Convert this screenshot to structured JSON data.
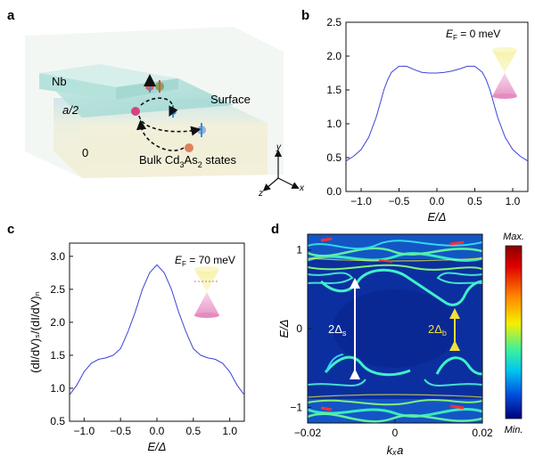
{
  "panels": {
    "a": "a",
    "b": "b",
    "c": "c",
    "d": "d"
  },
  "schematic": {
    "nb": "Nb",
    "surface": "Surface",
    "bulk_main": "Bulk Cd",
    "bulk_sub1": "3",
    "bulk_mid": "As",
    "bulk_sub2": "2",
    "bulk_end": " states",
    "a_half": "a/2",
    "zero": "0",
    "axis_x": "x",
    "axis_y": "y",
    "axis_z": "z",
    "colors": {
      "nb": "#b9e3dd",
      "surface": "#a9ddd8",
      "bulk": "#f1efd9",
      "spin_up": "#3a8fd8",
      "spin_red": "#e04a5a"
    }
  },
  "chart_data": [
    {
      "panel": "b",
      "type": "line",
      "annotation_main": "E",
      "annotation_sub": "F",
      "annotation_val": " = 0 meV",
      "xlabel": "E/Δ",
      "ylabel": "",
      "xlim": [
        -1.2,
        1.2
      ],
      "ylim": [
        0.0,
        2.5
      ],
      "xticks": [
        "−1.0",
        "−0.5",
        "0.0",
        "0.5",
        "1.0"
      ],
      "xtick_values": [
        -1.0,
        -0.5,
        0.0,
        0.5,
        1.0
      ],
      "yticks": [
        "0.0",
        "0.5",
        "1.0",
        "1.5",
        "2.0",
        "2.5"
      ],
      "ytick_values": [
        0.0,
        0.5,
        1.0,
        1.5,
        2.0,
        2.5
      ],
      "color": "#3b44d6",
      "x": [
        -1.2,
        -1.1,
        -1.0,
        -0.9,
        -0.8,
        -0.75,
        -0.7,
        -0.65,
        -0.6,
        -0.5,
        -0.4,
        -0.3,
        -0.2,
        -0.1,
        0.0,
        0.1,
        0.2,
        0.3,
        0.4,
        0.5,
        0.6,
        0.65,
        0.7,
        0.75,
        0.8,
        0.9,
        1.0,
        1.1,
        1.2
      ],
      "y": [
        0.45,
        0.52,
        0.62,
        0.8,
        1.1,
        1.3,
        1.5,
        1.65,
        1.76,
        1.85,
        1.85,
        1.8,
        1.76,
        1.75,
        1.75,
        1.76,
        1.78,
        1.81,
        1.85,
        1.85,
        1.76,
        1.65,
        1.5,
        1.3,
        1.1,
        0.8,
        0.62,
        0.52,
        0.45
      ]
    },
    {
      "panel": "c",
      "type": "line",
      "annotation_main": "E",
      "annotation_sub": "F",
      "annotation_val": " = 70 meV",
      "xlabel": "E/Δ",
      "ylabel": "(dI/dV)ₛ/(dI/dV)ₙ",
      "xlim": [
        -1.2,
        1.2
      ],
      "ylim": [
        0.5,
        3.2
      ],
      "xticks": [
        "−1.0",
        "−0.5",
        "0.0",
        "0.5",
        "1.0"
      ],
      "xtick_values": [
        -1.0,
        -0.5,
        0.0,
        0.5,
        1.0
      ],
      "yticks": [
        "0.5",
        "1.0",
        "1.5",
        "2.0",
        "2.5",
        "3.0"
      ],
      "ytick_values": [
        0.5,
        1.0,
        1.5,
        2.0,
        2.5,
        3.0
      ],
      "color": "#3b44d6",
      "x": [
        -1.2,
        -1.1,
        -1.0,
        -0.9,
        -0.8,
        -0.7,
        -0.6,
        -0.5,
        -0.4,
        -0.3,
        -0.2,
        -0.1,
        0.0,
        0.1,
        0.2,
        0.3,
        0.4,
        0.5,
        0.6,
        0.7,
        0.8,
        0.9,
        1.0,
        1.1,
        1.2
      ],
      "y": [
        0.9,
        1.05,
        1.25,
        1.38,
        1.44,
        1.46,
        1.5,
        1.6,
        1.85,
        2.15,
        2.5,
        2.75,
        2.87,
        2.75,
        2.5,
        2.15,
        1.85,
        1.6,
        1.5,
        1.46,
        1.44,
        1.38,
        1.25,
        1.05,
        0.9
      ]
    },
    {
      "panel": "d",
      "type": "heatmap",
      "xlabel": "kₓa",
      "ylabel": "E/Δ",
      "xlim": [
        -0.02,
        0.02
      ],
      "ylim": [
        -1.2,
        1.2
      ],
      "xticks": [
        "−0.02",
        "0",
        "0.02"
      ],
      "xtick_values": [
        -0.02,
        0.0,
        0.02
      ],
      "yticks": [
        "1",
        "0",
        "−1"
      ],
      "ytick_values": [
        1,
        0,
        -1
      ],
      "colorbar_max": "Max.",
      "colorbar_min": "Min.",
      "label_s_main": "2Δ",
      "label_s_sub": "s",
      "label_b_main": "2Δ",
      "label_b_sub": "b"
    }
  ]
}
